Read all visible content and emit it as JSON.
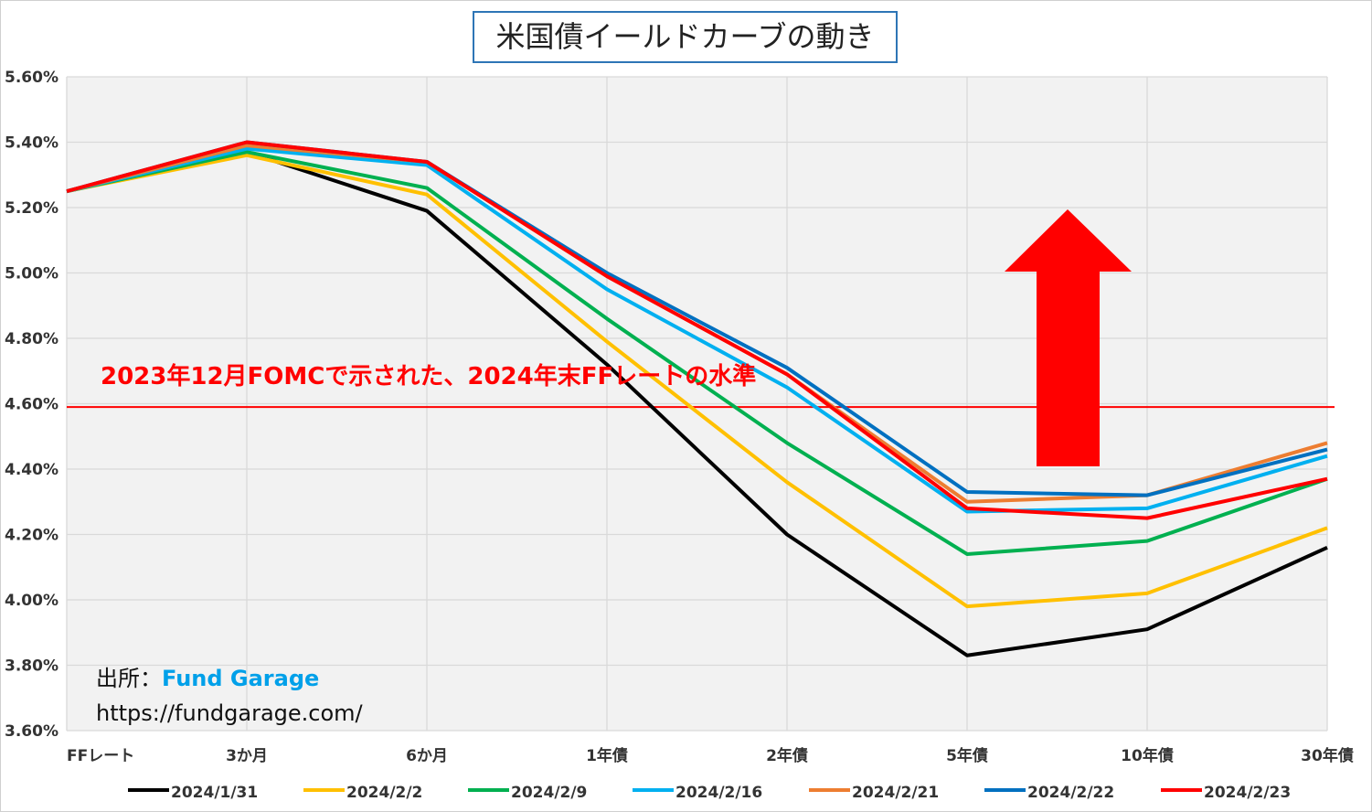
{
  "chart_data": {
    "type": "line",
    "title": "米国債イールドカーブの動き",
    "categories": [
      "FFレート",
      "3か月",
      "6か月",
      "1年債",
      "2年債",
      "5年債",
      "10年債",
      "30年債"
    ],
    "ylim": [
      3.6,
      5.6
    ],
    "yticks": [
      3.6,
      3.8,
      4.0,
      4.2,
      4.4,
      4.6,
      4.8,
      5.0,
      5.2,
      5.4,
      5.6
    ],
    "ytick_labels": [
      "3.60%",
      "3.80%",
      "4.00%",
      "4.20%",
      "4.40%",
      "4.60%",
      "4.80%",
      "5.00%",
      "5.20%",
      "5.40%",
      "5.60%"
    ],
    "grid": true,
    "legend_position": "bottom",
    "series": [
      {
        "name": "2024/1/31",
        "color": "#000000",
        "values": [
          5.25,
          5.37,
          5.19,
          4.72,
          4.2,
          3.83,
          3.91,
          4.16
        ]
      },
      {
        "name": "2024/2/2",
        "color": "#ffc000",
        "values": [
          5.25,
          5.36,
          5.24,
          4.79,
          4.36,
          3.98,
          4.02,
          4.22
        ]
      },
      {
        "name": "2024/2/9",
        "color": "#00b050",
        "values": [
          5.25,
          5.37,
          5.26,
          4.86,
          4.48,
          4.14,
          4.18,
          4.37
        ]
      },
      {
        "name": "2024/2/16",
        "color": "#00b0f0",
        "values": [
          5.25,
          5.38,
          5.33,
          4.95,
          4.65,
          4.27,
          4.28,
          4.44
        ]
      },
      {
        "name": "2024/2/21",
        "color": "#ed7d31",
        "values": [
          5.25,
          5.39,
          5.34,
          4.99,
          4.69,
          4.3,
          4.32,
          4.48
        ]
      },
      {
        "name": "2024/2/22",
        "color": "#0070c0",
        "values": [
          5.25,
          5.4,
          5.34,
          5.0,
          4.71,
          4.33,
          4.32,
          4.46
        ]
      },
      {
        "name": "2024/2/23",
        "color": "#ff0000",
        "values": [
          5.25,
          5.4,
          5.34,
          4.99,
          4.69,
          4.28,
          4.25,
          4.37
        ]
      }
    ],
    "reference_line": {
      "value": 4.59,
      "color": "#ff0000",
      "label": "2023年12月FOMCで示された、2024年末FFレートの水準"
    },
    "arrow": {
      "direction": "up",
      "color": "#ff0000"
    }
  },
  "source": {
    "label": "出所：",
    "name": "Fund Garage",
    "url": "https://fundgarage.com/"
  }
}
